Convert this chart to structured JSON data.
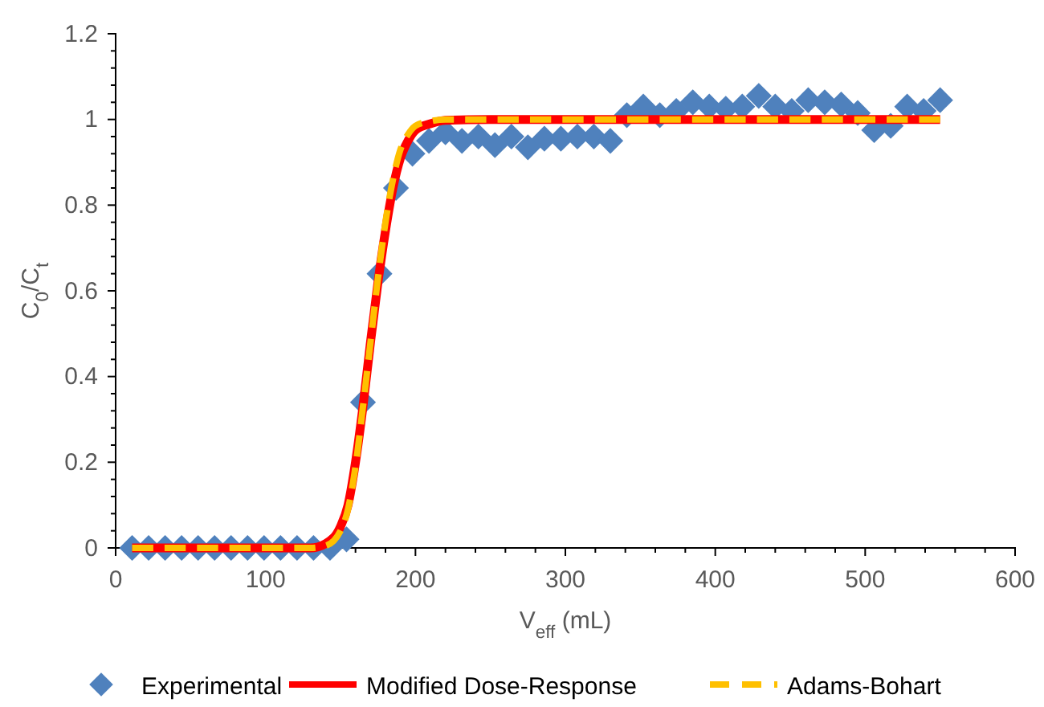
{
  "chart_data": {
    "type": "scatter",
    "xlabel": "V$_{eff}$ (mL)",
    "ylabel": "C$_{0}$/C$_{t}$",
    "xlim": [
      0,
      600
    ],
    "ylim": [
      0,
      1.2
    ],
    "xticks": [
      0,
      100,
      200,
      300,
      400,
      500,
      600
    ],
    "yticks": [
      0,
      0.2,
      0.4,
      0.6,
      0.8,
      1,
      1.2
    ],
    "grid": false,
    "legend": "bottom",
    "series": [
      {
        "name": "Experimental",
        "marker": "diamond",
        "color": "#4f81bd",
        "x": [
          11,
          22,
          33,
          44,
          55,
          66,
          77,
          88,
          99,
          110,
          121,
          132,
          143,
          154,
          165,
          176,
          187,
          198,
          209,
          220,
          231,
          242,
          253,
          264,
          275,
          286,
          297,
          308,
          319,
          330,
          341,
          352,
          363,
          374,
          385,
          396,
          407,
          418,
          429,
          440,
          451,
          462,
          473,
          484,
          495,
          506,
          517,
          528,
          539,
          550
        ],
        "values": [
          0,
          0,
          0,
          0,
          0,
          0,
          0,
          0,
          0,
          0,
          0,
          0,
          0,
          0.02,
          0.34,
          0.64,
          0.84,
          0.92,
          0.95,
          0.97,
          0.95,
          0.96,
          0.94,
          0.96,
          0.935,
          0.955,
          0.955,
          0.96,
          0.96,
          0.95,
          1.01,
          1.03,
          1.01,
          1.02,
          1.04,
          1.03,
          1.025,
          1.03,
          1.055,
          1.03,
          1.02,
          1.045,
          1.04,
          1.035,
          1.015,
          0.975,
          0.985,
          1.03,
          1.02,
          1.045
        ]
      },
      {
        "name": "Modified Dose-Response",
        "type": "line",
        "line_style": "solid",
        "marker": "none",
        "color": "#ff0000",
        "x": [
          11,
          130,
          140,
          150,
          155,
          160,
          165,
          170,
          175,
          180,
          185,
          190,
          195,
          200,
          210,
          220,
          250,
          550
        ],
        "values": [
          0,
          0,
          0.01,
          0.05,
          0.1,
          0.2,
          0.33,
          0.48,
          0.62,
          0.74,
          0.84,
          0.91,
          0.95,
          0.975,
          0.99,
          0.998,
          1,
          1
        ]
      },
      {
        "name": "Adams-Bohart",
        "type": "line",
        "line_style": "dashed",
        "marker": "none",
        "color": "#ffc000",
        "x": [
          11,
          130,
          140,
          150,
          155,
          160,
          165,
          170,
          175,
          180,
          185,
          190,
          195,
          200,
          210,
          220,
          250,
          550
        ],
        "values": [
          0,
          0,
          0.005,
          0.04,
          0.09,
          0.19,
          0.33,
          0.48,
          0.63,
          0.76,
          0.86,
          0.93,
          0.965,
          0.985,
          0.996,
          1,
          1,
          1
        ]
      }
    ]
  }
}
